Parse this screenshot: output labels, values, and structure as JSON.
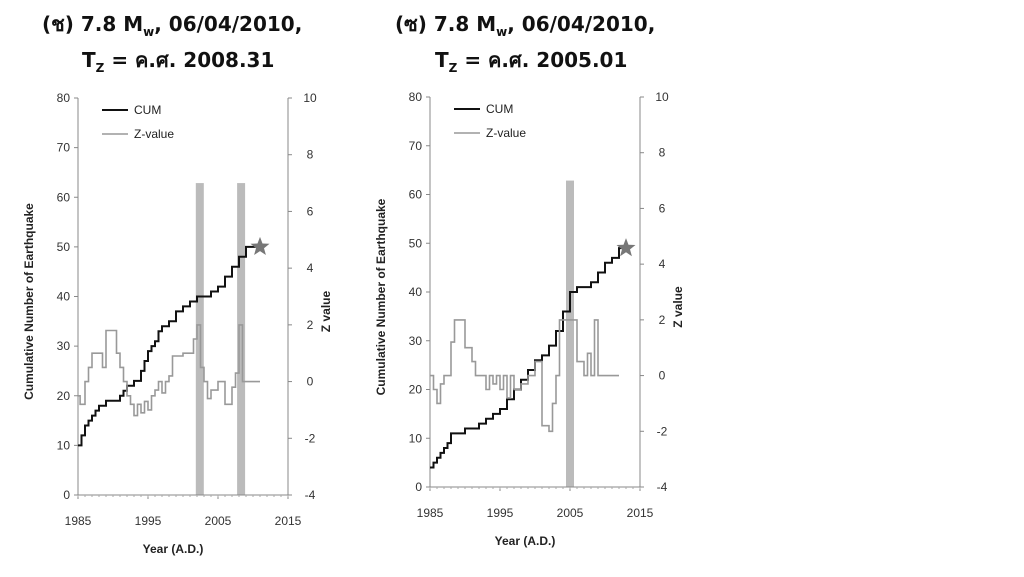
{
  "panels": [
    {
      "title_line1_prefix": "(ช) 7.8 M",
      "title_line1_sub": "w",
      "title_line1_suffix": ", 06/04/2010,",
      "title_line2_prefix": "T",
      "title_line2_sub": "Z",
      "title_line2_suffix": " = ค.ศ. 2008.31"
    },
    {
      "title_line1_prefix": "(ซ) 7.8 M",
      "title_line1_sub": "w",
      "title_line1_suffix": ", 06/04/2010,",
      "title_line2_prefix": "T",
      "title_line2_sub": "Z",
      "title_line2_suffix": " = ค.ศ. 2005.01"
    }
  ],
  "chart_data": [
    {
      "type": "line",
      "xlabel": "Year (A.D.)",
      "ylabel": "Cumulative Number of Earthquake",
      "y2label": "Z value",
      "xlim": [
        1985,
        2015
      ],
      "ylim": [
        0,
        80
      ],
      "y2lim": [
        -4,
        10
      ],
      "xticks": [
        "1985",
        "1995",
        "2005",
        "2015"
      ],
      "yticks": [
        "0",
        "10",
        "20",
        "30",
        "40",
        "50",
        "60",
        "70",
        "80"
      ],
      "y2ticks": [
        "-4",
        "-2",
        "0",
        "2",
        "4",
        "6",
        "8",
        "10"
      ],
      "legend": [
        "CUM",
        "Z-value"
      ],
      "series": [
        {
          "name": "CUM",
          "color": "#111111",
          "x": [
            1985,
            1985.5,
            1986,
            1986.5,
            1987,
            1987.5,
            1988,
            1988.5,
            1989,
            1990,
            1991,
            1991.5,
            1992,
            1993,
            1994,
            1994.5,
            1995,
            1995.5,
            1996,
            1996.5,
            1997,
            1998,
            1999,
            2000,
            2001,
            2002,
            2003,
            2004,
            2005,
            2006,
            2007,
            2008,
            2009,
            2010,
            2011
          ],
          "y": [
            10,
            12,
            14,
            15,
            16,
            17,
            18,
            18,
            19,
            19,
            20,
            21,
            22,
            23,
            25,
            27,
            29,
            30,
            31,
            33,
            34,
            35,
            37,
            38,
            39,
            40,
            40,
            41,
            42,
            44,
            46,
            48,
            50,
            50,
            50
          ]
        },
        {
          "name": "Z-value",
          "color": "#999999",
          "x": [
            1985,
            1985.3,
            1986,
            1986.5,
            1987,
            1988,
            1988.5,
            1989,
            1990,
            1990.5,
            1991,
            1991.5,
            1992,
            1992.5,
            1993,
            1993.5,
            1994,
            1994.5,
            1995,
            1995.5,
            1996,
            1996.5,
            1997,
            1997.5,
            1998,
            1998.5,
            1999,
            2000,
            2001,
            2001.5,
            2002,
            2002.5,
            2003,
            2003.5,
            2004,
            2005,
            2006,
            2007,
            2007.5,
            2008,
            2008.5,
            2009,
            2010,
            2011
          ],
          "y": [
            -0.5,
            -0.8,
            0,
            0.5,
            1,
            1,
            0.5,
            1.8,
            1.8,
            1,
            0.5,
            0,
            -0.5,
            -0.8,
            -1.2,
            -0.8,
            -1.1,
            -0.7,
            -1,
            -0.5,
            -0.3,
            0,
            -0.4,
            0,
            0.2,
            0.9,
            0.9,
            1,
            1,
            1.5,
            2,
            0.5,
            0,
            -0.6,
            -0.3,
            0,
            -0.8,
            -0.2,
            0.3,
            2,
            0,
            0,
            0,
            0
          ]
        }
      ],
      "highlight_bars": [
        {
          "x": 2002.4,
          "top": 7,
          "color": "#bbbbbb"
        },
        {
          "x": 2008.3,
          "top": 7,
          "color": "#bbbbbb"
        }
      ],
      "marker": {
        "x": 2011,
        "y": 50,
        "shape": "star",
        "color": "#777777"
      }
    },
    {
      "type": "line",
      "xlabel": "Year (A.D.)",
      "ylabel": "Cumulative Number of Earthquake",
      "y2label": "Z value",
      "xlim": [
        1985,
        2015
      ],
      "ylim": [
        0,
        80
      ],
      "y2lim": [
        -4,
        10
      ],
      "xticks": [
        "1985",
        "1995",
        "2005",
        "2015"
      ],
      "yticks": [
        "0",
        "10",
        "20",
        "30",
        "40",
        "50",
        "60",
        "70",
        "80"
      ],
      "y2ticks": [
        "-4",
        "-2",
        "0",
        "2",
        "4",
        "6",
        "8",
        "10"
      ],
      "legend": [
        "CUM",
        "Z-value"
      ],
      "series": [
        {
          "name": "CUM",
          "color": "#111111",
          "x": [
            1985,
            1985.5,
            1986,
            1986.5,
            1987,
            1987.5,
            1988,
            1989,
            1990,
            1991,
            1992,
            1993,
            1994,
            1995,
            1996,
            1997,
            1998,
            1999,
            2000,
            2001,
            2002,
            2003,
            2004,
            2005,
            2006,
            2007,
            2008,
            2009,
            2010,
            2011,
            2012,
            2013
          ],
          "y": [
            4,
            5,
            6,
            7,
            8,
            9,
            11,
            11,
            12,
            12,
            13,
            14,
            15,
            16,
            18,
            20,
            22,
            24,
            26,
            27,
            29,
            32,
            36,
            40,
            41,
            41,
            42,
            44,
            46,
            47,
            49,
            49
          ]
        },
        {
          "name": "Z-value",
          "color": "#999999",
          "x": [
            1985,
            1985.5,
            1986,
            1986.5,
            1987,
            1988,
            1988.5,
            1989,
            1990,
            1991,
            1991.5,
            1992,
            1992.5,
            1993,
            1993.5,
            1994,
            1994.5,
            1995,
            1995.5,
            1996,
            1996.5,
            1997,
            1998,
            1999,
            2000,
            2001,
            2002,
            2002.5,
            2003,
            2003.5,
            2004,
            2005,
            2006,
            2007,
            2007.5,
            2008,
            2008.5,
            2009,
            2010,
            2011,
            2012
          ],
          "y": [
            0,
            -0.5,
            -1,
            -0.3,
            0,
            1.2,
            2,
            2,
            1,
            0.5,
            0,
            0,
            0,
            -0.5,
            0,
            -0.3,
            0,
            -0.5,
            0,
            -0.8,
            0,
            -0.5,
            -0.3,
            0,
            0.5,
            -1.8,
            -2,
            -1,
            0,
            2,
            2,
            2,
            0.5,
            0,
            0.8,
            0,
            2,
            0,
            0,
            0,
            0
          ]
        }
      ],
      "highlight_bars": [
        {
          "x": 2005.0,
          "top": 7,
          "color": "#bbbbbb"
        }
      ],
      "marker": {
        "x": 2013,
        "y": 49,
        "shape": "star",
        "color": "#777777"
      }
    }
  ]
}
